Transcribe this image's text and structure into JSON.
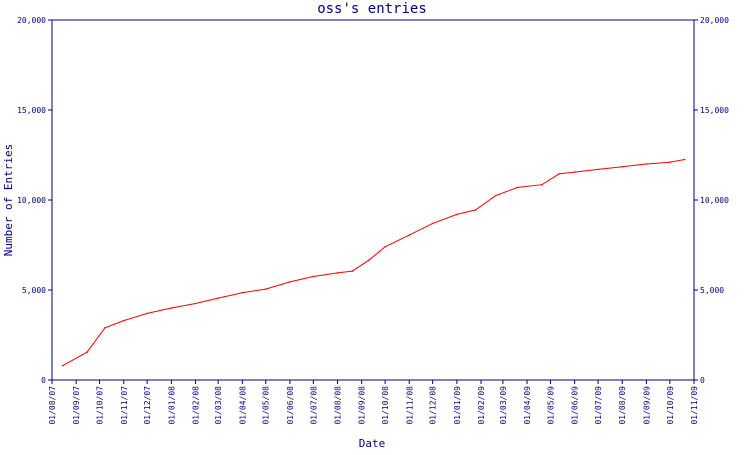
{
  "chart_data": {
    "type": "line",
    "title": "oss's entries",
    "xlabel": "Date",
    "ylabel": "Number of Entries",
    "ylim": [
      0,
      20000
    ],
    "yticks": [
      0,
      5000,
      10000,
      15000,
      20000
    ],
    "ytick_labels": [
      "0",
      "5,000",
      "10,000",
      "15,000",
      "20,000"
    ],
    "xlim": [
      "2007-08-01",
      "2009-11-01"
    ],
    "xtick_labels": [
      "01/08/07",
      "01/09/07",
      "01/10/07",
      "01/11/07",
      "01/12/07",
      "01/01/08",
      "01/02/08",
      "01/03/08",
      "01/04/08",
      "01/05/08",
      "01/06/08",
      "01/07/08",
      "01/08/08",
      "01/09/08",
      "01/10/08",
      "01/11/08",
      "01/12/08",
      "01/01/09",
      "01/02/09",
      "01/03/09",
      "01/04/09",
      "01/05/09",
      "01/06/09",
      "01/07/09",
      "01/08/09",
      "01/09/09",
      "01/10/09",
      "01/11/09"
    ],
    "grid": false,
    "series": [
      {
        "color": "#ff0000",
        "x": [
          "2007-08-15",
          "2007-09-15",
          "2007-10-08",
          "2007-11-01",
          "2007-12-01",
          "2008-01-01",
          "2008-02-01",
          "2008-03-01",
          "2008-04-01",
          "2008-05-01",
          "2008-06-01",
          "2008-07-01",
          "2008-08-01",
          "2008-08-20",
          "2008-09-10",
          "2008-10-01",
          "2008-11-01",
          "2008-12-01",
          "2009-01-01",
          "2009-01-25",
          "2009-02-20",
          "2009-03-20",
          "2009-04-20",
          "2009-05-12",
          "2009-06-01",
          "2009-07-01",
          "2009-08-01",
          "2009-09-01",
          "2009-10-01",
          "2009-10-20"
        ],
        "values": [
          800,
          1550,
          2900,
          3300,
          3700,
          4000,
          4250,
          4550,
          4850,
          5050,
          5450,
          5750,
          5950,
          6050,
          6650,
          7400,
          8050,
          8700,
          9200,
          9450,
          10250,
          10700,
          10850,
          11450,
          11550,
          11700,
          11850,
          12000,
          12100,
          12250
        ]
      }
    ]
  }
}
